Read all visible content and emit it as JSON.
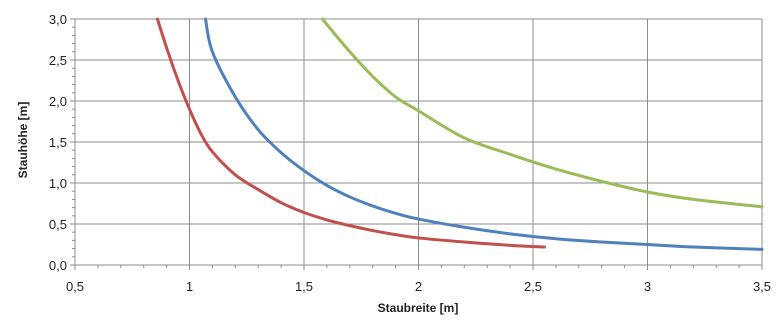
{
  "chart_data": {
    "type": "line",
    "xlabel": "Staubreite [m]",
    "ylabel": "Stauhöhe [m]",
    "xlim": [
      0.5,
      3.5
    ],
    "ylim": [
      0,
      3
    ],
    "x_ticks": [
      0.5,
      1,
      1.5,
      2,
      2.5,
      3,
      3.5
    ],
    "x_tick_labels": [
      "0,5",
      "1",
      "1,5",
      "2",
      "2,5",
      "3",
      "3,5"
    ],
    "y_ticks": [
      0,
      0.5,
      1,
      1.5,
      2,
      2.5,
      3
    ],
    "y_tick_labels": [
      "0,0",
      "0,5",
      "1,0",
      "1,5",
      "2,0",
      "2,5",
      "3,0"
    ],
    "grid": true,
    "legend": "none",
    "series": [
      {
        "color": "#c0504d",
        "x": [
          0.86,
          0.9,
          0.95,
          1.0,
          1.05,
          1.1,
          1.2,
          1.3,
          1.4,
          1.5,
          1.6,
          1.7,
          1.8,
          1.9,
          2.0,
          2.2,
          2.4,
          2.55
        ],
        "y": [
          3.0,
          2.65,
          2.25,
          1.9,
          1.6,
          1.38,
          1.1,
          0.92,
          0.76,
          0.64,
          0.55,
          0.48,
          0.42,
          0.37,
          0.33,
          0.28,
          0.24,
          0.22
        ]
      },
      {
        "color": "#4f81bd",
        "x": [
          1.07,
          1.1,
          1.2,
          1.3,
          1.4,
          1.5,
          1.6,
          1.7,
          1.8,
          1.9,
          2.0,
          2.2,
          2.4,
          2.6,
          2.8,
          3.0,
          3.2,
          3.5
        ],
        "y": [
          3.0,
          2.6,
          2.05,
          1.65,
          1.37,
          1.15,
          0.97,
          0.83,
          0.72,
          0.63,
          0.56,
          0.46,
          0.38,
          0.32,
          0.28,
          0.25,
          0.22,
          0.19
        ]
      },
      {
        "color": "#9bbb59",
        "x": [
          1.58,
          1.7,
          1.8,
          1.9,
          2.0,
          2.2,
          2.4,
          2.6,
          2.8,
          3.0,
          3.2,
          3.5
        ],
        "y": [
          3.0,
          2.6,
          2.3,
          2.05,
          1.88,
          1.55,
          1.35,
          1.17,
          1.02,
          0.89,
          0.8,
          0.71
        ]
      }
    ]
  }
}
